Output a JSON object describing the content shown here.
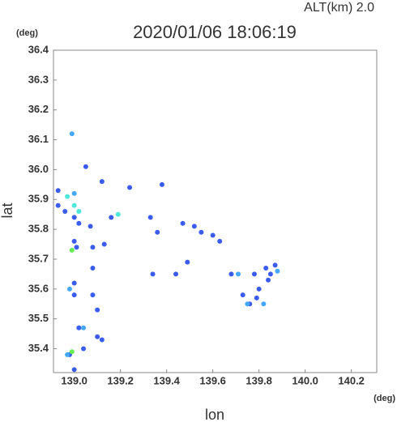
{
  "chart_data": {
    "type": "scatter",
    "title": "2020/01/06 18:06:19",
    "subtitle": "ALT(km) 2.0",
    "y_unit": "(deg)",
    "x_unit": "(deg)",
    "xlabel": "lon",
    "ylabel": "lat",
    "xlim": [
      138.91,
      140.31
    ],
    "ylim": [
      35.32,
      36.4
    ],
    "xticks": [
      {
        "value": 139,
        "label": "139.0"
      },
      139.2,
      139.4,
      139.6,
      139.8,
      {
        "value": 140,
        "label": "140.0"
      },
      140.2
    ],
    "yticks": [
      35.4,
      35.5,
      35.6,
      35.7,
      35.8,
      35.9,
      {
        "value": 36,
        "label": "36.0"
      },
      36.1,
      36.2,
      36.3,
      36.4
    ],
    "series": [
      {
        "color": "#3a5cf0",
        "x": [
          139.05,
          139.12,
          139.24,
          139.38,
          138.93,
          138.93,
          138.96,
          139.0,
          139.02,
          139.07,
          139.16,
          139.33,
          139.47,
          139.52,
          139.55,
          139.6,
          139.63,
          139.36,
          139.0,
          139.01,
          139.08,
          139.13,
          139.49,
          139.34,
          139.44,
          139.08,
          139.0,
          139.08,
          139.1,
          139.0,
          139.02,
          139.1,
          139.12,
          139.04,
          138.98,
          139.0,
          139.76,
          139.79,
          139.84,
          139.85,
          139.83,
          139.87,
          139.78,
          139.68,
          139.73,
          139.8
        ],
        "values": [
          36.01,
          35.96,
          35.94,
          35.95,
          35.93,
          35.88,
          35.86,
          35.84,
          35.82,
          35.81,
          35.84,
          35.84,
          35.82,
          35.81,
          35.79,
          35.78,
          35.76,
          35.79,
          35.76,
          35.74,
          35.74,
          35.75,
          35.69,
          35.65,
          35.65,
          35.67,
          35.62,
          35.58,
          35.53,
          35.58,
          35.47,
          35.44,
          35.43,
          35.4,
          35.38,
          35.33,
          35.55,
          35.57,
          35.63,
          35.65,
          35.67,
          35.68,
          35.65,
          35.65,
          35.58,
          35.6
        ]
      },
      {
        "color": "#44a8ff",
        "x": [
          138.99,
          139.0,
          138.98,
          139.04,
          138.97,
          139.75,
          139.71,
          139.82,
          139.88
        ],
        "values": [
          36.12,
          35.92,
          35.6,
          35.47,
          35.38,
          35.55,
          35.65,
          35.55,
          35.66
        ]
      },
      {
        "color": "#4de8d8",
        "x": [
          139.0,
          138.97,
          139.02,
          139.19
        ],
        "values": [
          35.88,
          35.91,
          35.86,
          35.85
        ]
      },
      {
        "color": "#66ee55",
        "x": [
          138.99,
          138.99
        ],
        "values": [
          35.73,
          35.39
        ]
      }
    ]
  }
}
